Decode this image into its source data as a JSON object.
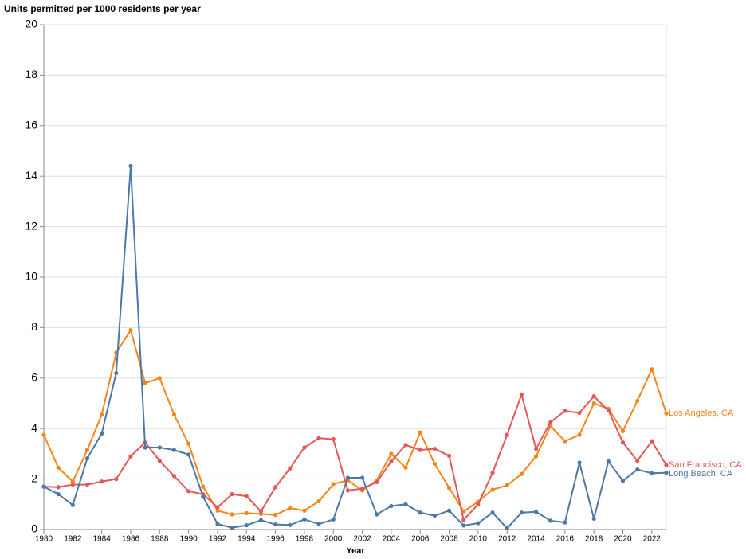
{
  "chart_data": {
    "type": "line",
    "title": "Units permitted per 1000 residents per year",
    "x_label": "Year",
    "x": [
      1980,
      1981,
      1982,
      1983,
      1984,
      1985,
      1986,
      1987,
      1988,
      1989,
      1990,
      1991,
      1992,
      1993,
      1994,
      1995,
      1996,
      1997,
      1998,
      1999,
      2000,
      2001,
      2002,
      2003,
      2004,
      2005,
      2006,
      2007,
      2008,
      2009,
      2010,
      2011,
      2012,
      2013,
      2014,
      2015,
      2016,
      2017,
      2018,
      2019,
      2020,
      2021,
      2022,
      2023
    ],
    "series": [
      {
        "name": "Los Angeles, CA",
        "color": "#f58518",
        "values": [
          3.75,
          2.45,
          1.9,
          3.15,
          4.55,
          7.0,
          7.9,
          5.8,
          6.0,
          4.55,
          3.4,
          1.7,
          0.75,
          0.6,
          0.65,
          0.62,
          0.58,
          0.85,
          0.75,
          1.12,
          1.8,
          1.95,
          1.55,
          1.95,
          3.0,
          2.45,
          3.85,
          2.6,
          1.65,
          0.72,
          1.1,
          1.58,
          1.75,
          2.2,
          2.9,
          4.1,
          3.5,
          3.75,
          5.0,
          4.78,
          3.9,
          5.1,
          6.35,
          4.6
        ]
      },
      {
        "name": "San Francisco, CA",
        "color": "#e45756",
        "values": [
          1.7,
          1.68,
          1.78,
          1.78,
          1.9,
          2.0,
          2.9,
          3.45,
          2.72,
          2.12,
          1.52,
          1.4,
          0.88,
          1.4,
          1.32,
          0.72,
          1.68,
          2.42,
          3.25,
          3.62,
          3.58,
          1.55,
          1.62,
          1.88,
          2.7,
          3.35,
          3.15,
          3.2,
          2.92,
          0.38,
          1.0,
          2.25,
          3.75,
          5.35,
          3.2,
          4.25,
          4.7,
          4.62,
          5.28,
          4.72,
          3.45,
          2.72,
          3.5,
          2.55
        ]
      },
      {
        "name": "Long Beach, CA",
        "color": "#4c78a8",
        "values": [
          1.7,
          1.4,
          0.97,
          2.82,
          3.8,
          6.2,
          14.4,
          3.25,
          3.25,
          3.15,
          2.97,
          1.3,
          0.22,
          0.07,
          0.17,
          0.37,
          0.2,
          0.18,
          0.4,
          0.22,
          0.4,
          2.05,
          2.05,
          0.6,
          0.93,
          1.0,
          0.67,
          0.55,
          0.75,
          0.16,
          0.25,
          0.67,
          0.05,
          0.67,
          0.7,
          0.35,
          0.28,
          2.65,
          0.43,
          2.7,
          1.93,
          2.38,
          2.23,
          2.25
        ]
      }
    ],
    "xlim": [
      1980,
      2023
    ],
    "xticks": [
      1980,
      1982,
      1984,
      1986,
      1988,
      1990,
      1992,
      1994,
      1996,
      1998,
      2000,
      2002,
      2004,
      2006,
      2008,
      2010,
      2012,
      2014,
      2016,
      2018,
      2020,
      2022
    ],
    "ylim": [
      0,
      20
    ],
    "yticks": [
      0,
      2,
      4,
      6,
      8,
      10,
      12,
      14,
      16,
      18,
      20
    ],
    "grid": true
  }
}
